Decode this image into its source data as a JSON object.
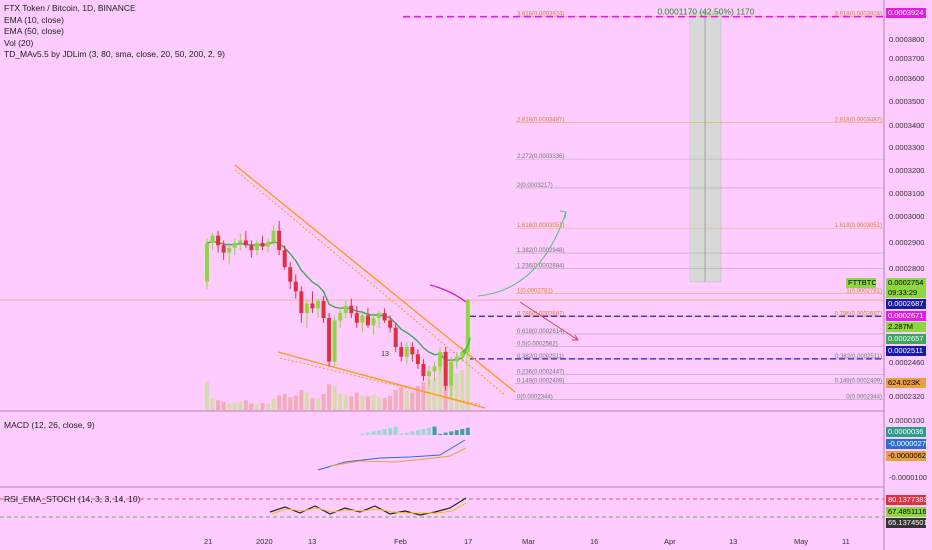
{
  "legend": {
    "title": "FTX Token / Bitcoin, 1D, BINANCE",
    "ema10": "EMA (10, close)",
    "ema50": "EMA (50, close)",
    "vol": "Vol (20)",
    "td": "TD_MAv5.5 by JDLim (3, 80, sma, close, 20, 50, 200, 2, 9)"
  },
  "macd_label": "MACD (12, 26, close, 9)",
  "rsi_label": "RSI_EMA_STOCH (14, 3, 3, 14, 10)",
  "top_annotation": "0.0001170 (42.50%) 1170",
  "candle_count_label": "13",
  "colors": {
    "background": "#ffccff",
    "up": "#8ed83f",
    "down": "#e03040",
    "ema10": "#3aa85c",
    "ema50": "#d020c0",
    "wedge": "#ff9a1a",
    "target_line": "#e020e0",
    "support_line": "#2020c0"
  },
  "price_axis": [
    "0.0003924",
    "0.0003800",
    "0.0003700",
    "0.0003600",
    "0.0003500",
    "0.0003400",
    "0.0003300",
    "0.0003200",
    "0.0003100",
    "0.0003000",
    "0.0002900",
    "0.0002800",
    "0.0002460",
    "0.0002320"
  ],
  "price_tags": [
    {
      "text": "0.0003924",
      "bg": "#e020e0",
      "fg": "#ffffff"
    },
    {
      "text": "0.0002754",
      "bg": "#8ed83f",
      "fg": "#000000"
    },
    {
      "text": "09:33:29",
      "bg": "#8ed83f",
      "fg": "#000000"
    },
    {
      "text": "0.0002687",
      "bg": "#1a1aa8",
      "fg": "#ffffff"
    },
    {
      "text": "0.0002671",
      "bg": "#e020e0",
      "fg": "#ffffff"
    },
    {
      "text": "2.287M",
      "bg": "#8ed83f",
      "fg": "#000000"
    },
    {
      "text": "0.0002657",
      "bg": "#3aa85c",
      "fg": "#ffffff"
    },
    {
      "text": "0.0002511",
      "bg": "#1a1aa8",
      "fg": "#ffffff"
    },
    {
      "text": "624.023K",
      "bg": "#e8a040",
      "fg": "#000000"
    },
    {
      "text": "FTTBTC",
      "bg": "#8ed83f",
      "fg": "#000000"
    }
  ],
  "macd_axis": [
    "0.0000100",
    "-0.0000100"
  ],
  "macd_tags": [
    {
      "text": "0.0000036",
      "bg": "#2a9d8f",
      "fg": "#ffffff"
    },
    {
      "text": "-0.0000027",
      "bg": "#2a6fd0",
      "fg": "#ffffff"
    },
    {
      "text": "-0.0000062",
      "bg": "#e8a040",
      "fg": "#000000"
    }
  ],
  "rsi_tags": [
    {
      "text": "80.1377383",
      "bg": "#e03040",
      "fg": "#ffffff"
    },
    {
      "text": "67.4851116",
      "bg": "#8ed83f",
      "fg": "#000000"
    },
    {
      "text": "65.1374501",
      "bg": "#333333",
      "fg": "#ffffff"
    }
  ],
  "dates": [
    "21",
    "2020",
    "13",
    "Feb",
    "17",
    "Mar",
    "16",
    "Apr",
    "13",
    "May",
    "11"
  ],
  "fib_levels": [
    {
      "label": "3.618(0.0003924)",
      "label_right": "3.618(0.0003924)",
      "price": 0.0003924,
      "color": "#e8a040"
    },
    {
      "label": "2.618(0.0003487)",
      "label_right": "2.618(0.0003487)",
      "price": 0.0003487,
      "color": "#e8a040"
    },
    {
      "label": "2.272(0.0003336)",
      "label_right": "",
      "price": 0.0003336,
      "color": "#a0a0a0"
    },
    {
      "label": "2(0.0003217)",
      "label_right": "",
      "price": 0.0003217,
      "color": "#a0a0a0"
    },
    {
      "label": "1.618(0.0003051)",
      "label_right": "1.618(0.0003051)",
      "price": 0.0003051,
      "color": "#e8a040"
    },
    {
      "label": "1.382(0.0002948)",
      "label_right": "",
      "price": 0.0002948,
      "color": "#a0a0a0"
    },
    {
      "label": "1.236(0.0002884)",
      "label_right": "",
      "price": 0.0002884,
      "color": "#a0a0a0"
    },
    {
      "label": "1(0.0002781)",
      "label_right": "1(0.0002781)",
      "price": 0.0002781,
      "color": "#e8a040"
    },
    {
      "label": "0.786(0.0002687)",
      "label_right": "0.786(0.0002687)",
      "price": 0.0002687,
      "color": "#e8a040"
    },
    {
      "label": "0.618(0.0002614)",
      "label_right": "",
      "price": 0.0002614,
      "color": "#a0a0a0"
    },
    {
      "label": "0.5(0.0002562)",
      "label_right": "",
      "price": 0.0002562,
      "color": "#a0a0a0"
    },
    {
      "label": "0.382(0.0002511)",
      "label_right": "0.382(0.0002511)",
      "price": 0.0002511,
      "color": "#a0a0a0"
    },
    {
      "label": "0.236(0.0002447)",
      "label_right": "",
      "price": 0.0002447,
      "color": "#a0a0a0"
    },
    {
      "label": "0.149(0.0002409)",
      "label_right": "0.149(0.0002409)",
      "price": 0.0002409,
      "color": "#a0a0a0"
    },
    {
      "label": "0(0.0002344)",
      "label_right": "0(0.0002344)",
      "price": 0.0002344,
      "color": "#a0a0a0"
    }
  ],
  "chart_data": {
    "type": "candlestick",
    "symbol": "FTTBTC",
    "candles": [
      {
        "o": 0.000283,
        "h": 0.000301,
        "l": 0.00028,
        "c": 0.000299
      },
      {
        "o": 0.000299,
        "h": 0.000303,
        "l": 0.000296,
        "c": 0.000302
      },
      {
        "o": 0.000302,
        "h": 0.000304,
        "l": 0.000295,
        "c": 0.000298
      },
      {
        "o": 0.000298,
        "h": 0.0003,
        "l": 0.000292,
        "c": 0.000295
      },
      {
        "o": 0.000295,
        "h": 0.000299,
        "l": 0.00029,
        "c": 0.000297
      },
      {
        "o": 0.000297,
        "h": 0.000301,
        "l": 0.000294,
        "c": 0.000299
      },
      {
        "o": 0.000299,
        "h": 0.000303,
        "l": 0.000296,
        "c": 0.0003
      },
      {
        "o": 0.0003,
        "h": 0.000304,
        "l": 0.000297,
        "c": 0.000298
      },
      {
        "o": 0.000298,
        "h": 0.0003,
        "l": 0.000293,
        "c": 0.000296
      },
      {
        "o": 0.000296,
        "h": 0.0003,
        "l": 0.000294,
        "c": 0.000299
      },
      {
        "o": 0.000299,
        "h": 0.000302,
        "l": 0.000296,
        "c": 0.0002975
      },
      {
        "o": 0.0002975,
        "h": 0.000301,
        "l": 0.000295,
        "c": 0.0002995
      },
      {
        "o": 0.0002995,
        "h": 0.000306,
        "l": 0.000298,
        "c": 0.000304
      },
      {
        "o": 0.000304,
        "h": 0.000308,
        "l": 0.000294,
        "c": 0.000296
      },
      {
        "o": 0.000296,
        "h": 0.000298,
        "l": 0.000288,
        "c": 0.000289
      },
      {
        "o": 0.000289,
        "h": 0.000291,
        "l": 0.00028,
        "c": 0.000283
      },
      {
        "o": 0.000283,
        "h": 0.000286,
        "l": 0.000276,
        "c": 0.000279
      },
      {
        "o": 0.000279,
        "h": 0.000281,
        "l": 0.000266,
        "c": 0.00027
      },
      {
        "o": 0.00027,
        "h": 0.000276,
        "l": 0.000264,
        "c": 0.000274
      },
      {
        "o": 0.000274,
        "h": 0.000279,
        "l": 0.00027,
        "c": 0.000272
      },
      {
        "o": 0.000272,
        "h": 0.000276,
        "l": 0.000268,
        "c": 0.000275
      },
      {
        "o": 0.000275,
        "h": 0.000277,
        "l": 0.000266,
        "c": 0.000268
      },
      {
        "o": 0.000268,
        "h": 0.00027,
        "l": 0.000248,
        "c": 0.00025
      },
      {
        "o": 0.00025,
        "h": 0.000269,
        "l": 0.000248,
        "c": 0.000267
      },
      {
        "o": 0.000267,
        "h": 0.000272,
        "l": 0.000264,
        "c": 0.00027
      },
      {
        "o": 0.00027,
        "h": 0.000275,
        "l": 0.000268,
        "c": 0.000273
      },
      {
        "o": 0.000273,
        "h": 0.000276,
        "l": 0.000268,
        "c": 0.00027
      },
      {
        "o": 0.00027,
        "h": 0.000273,
        "l": 0.000264,
        "c": 0.000266
      },
      {
        "o": 0.000266,
        "h": 0.00027,
        "l": 0.000262,
        "c": 0.000269
      },
      {
        "o": 0.000269,
        "h": 0.000272,
        "l": 0.000264,
        "c": 0.000265
      },
      {
        "o": 0.000265,
        "h": 0.00027,
        "l": 0.000261,
        "c": 0.000268
      },
      {
        "o": 0.000268,
        "h": 0.000271,
        "l": 0.000264,
        "c": 0.00027
      },
      {
        "o": 0.00027,
        "h": 0.000272,
        "l": 0.000266,
        "c": 0.000267
      },
      {
        "o": 0.000267,
        "h": 0.000269,
        "l": 0.000262,
        "c": 0.000264
      },
      {
        "o": 0.000264,
        "h": 0.000266,
        "l": 0.000254,
        "c": 0.000256
      },
      {
        "o": 0.000256,
        "h": 0.000258,
        "l": 0.00025,
        "c": 0.000252
      },
      {
        "o": 0.000252,
        "h": 0.000258,
        "l": 0.000249,
        "c": 0.000256
      },
      {
        "o": 0.000256,
        "h": 0.000258,
        "l": 0.00025,
        "c": 0.000253
      },
      {
        "o": 0.000253,
        "h": 0.000255,
        "l": 0.000247,
        "c": 0.000249
      },
      {
        "o": 0.000249,
        "h": 0.000251,
        "l": 0.000242,
        "c": 0.000244
      },
      {
        "o": 0.000244,
        "h": 0.000248,
        "l": 0.00024,
        "c": 0.000246
      },
      {
        "o": 0.000246,
        "h": 0.00025,
        "l": 0.000242,
        "c": 0.000248
      },
      {
        "o": 0.000248,
        "h": 0.000256,
        "l": 0.000246,
        "c": 0.000254
      },
      {
        "o": 0.000254,
        "h": 0.000256,
        "l": 0.000238,
        "c": 0.00024
      },
      {
        "o": 0.00024,
        "h": 0.000252,
        "l": 0.000235,
        "c": 0.00025
      },
      {
        "o": 0.00025,
        "h": 0.000254,
        "l": 0.000247,
        "c": 0.000252
      },
      {
        "o": 0.000252,
        "h": 0.000256,
        "l": 0.00025,
        "c": 0.000254
      },
      {
        "o": 0.000254,
        "h": 0.000276,
        "l": 0.000252,
        "c": 0.0002754
      }
    ],
    "volume": [
      0.35,
      0.15,
      0.12,
      0.1,
      0.08,
      0.09,
      0.1,
      0.12,
      0.08,
      0.07,
      0.09,
      0.08,
      0.14,
      0.18,
      0.2,
      0.16,
      0.18,
      0.25,
      0.22,
      0.15,
      0.14,
      0.2,
      0.32,
      0.3,
      0.2,
      0.18,
      0.17,
      0.22,
      0.18,
      0.17,
      0.19,
      0.16,
      0.15,
      0.18,
      0.25,
      0.28,
      0.24,
      0.22,
      0.3,
      0.35,
      0.38,
      0.4,
      0.55,
      0.65,
      0.6,
      0.45,
      0.5,
      0.95
    ],
    "price_range": [
      0.00023,
      0.000396
    ],
    "current_price": 0.0002754
  }
}
